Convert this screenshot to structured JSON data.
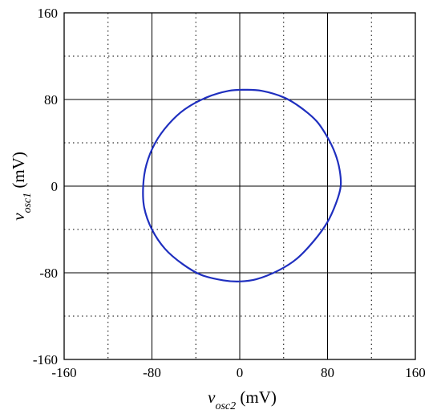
{
  "chart_data": {
    "type": "line",
    "title": "",
    "xlabel": {
      "var": "v",
      "sub": "osc2",
      "unit": " (mV)"
    },
    "ylabel": {
      "var": "v",
      "sub": "osc1",
      "unit": " (mV)"
    },
    "xlim": [
      -160,
      160
    ],
    "ylim": [
      -160,
      160
    ],
    "x_ticks": [
      -160,
      -80,
      0,
      80,
      160
    ],
    "y_ticks": [
      -160,
      -80,
      0,
      80,
      160
    ],
    "x_tick_labels": [
      "-160",
      "-80",
      "0",
      "80",
      "160"
    ],
    "y_tick_labels": [
      "-160",
      "-80",
      "0",
      "80",
      "160"
    ],
    "major_grid": {
      "style": "solid",
      "values": [
        -80,
        0,
        80
      ]
    },
    "minor_grid": {
      "style": "dotted",
      "values": [
        -120,
        -40,
        40,
        120
      ]
    },
    "series": [
      {
        "color": "#1f2fbf",
        "closed": true,
        "points": [
          {
            "x": 92,
            "y": 0
          },
          {
            "x": 91,
            "y": 15
          },
          {
            "x": 87,
            "y": 30
          },
          {
            "x": 80,
            "y": 45
          },
          {
            "x": 70,
            "y": 60
          },
          {
            "x": 55,
            "y": 73
          },
          {
            "x": 40,
            "y": 82
          },
          {
            "x": 20,
            "y": 88
          },
          {
            "x": 5,
            "y": 89
          },
          {
            "x": -10,
            "y": 88
          },
          {
            "x": -30,
            "y": 82
          },
          {
            "x": -50,
            "y": 71
          },
          {
            "x": -65,
            "y": 57
          },
          {
            "x": -77,
            "y": 40
          },
          {
            "x": -85,
            "y": 20
          },
          {
            "x": -88,
            "y": 0
          },
          {
            "x": -87,
            "y": -20
          },
          {
            "x": -80,
            "y": -40
          },
          {
            "x": -68,
            "y": -58
          },
          {
            "x": -52,
            "y": -72
          },
          {
            "x": -35,
            "y": -82
          },
          {
            "x": -15,
            "y": -87
          },
          {
            "x": 0,
            "y": -88
          },
          {
            "x": 15,
            "y": -86
          },
          {
            "x": 35,
            "y": -78
          },
          {
            "x": 52,
            "y": -67
          },
          {
            "x": 68,
            "y": -50
          },
          {
            "x": 80,
            "y": -33
          },
          {
            "x": 88,
            "y": -15
          }
        ]
      }
    ]
  }
}
